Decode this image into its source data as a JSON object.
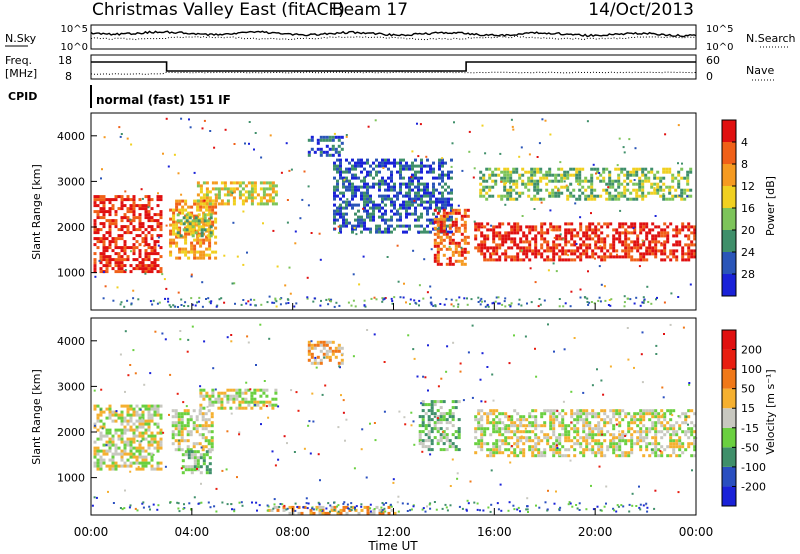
{
  "header": {
    "title": "Christmas Valley East (fitACF)",
    "beam": "Beam 17",
    "date": "14/Oct/2013"
  },
  "top_panels": {
    "nsky_label": "N.Sky",
    "nsearch_label": "N.Search",
    "nsky_ticks": [
      "10^5",
      "10^0"
    ],
    "nsky_right_ticks": [
      "10^5",
      "10^0"
    ],
    "freq_label_line1": "Freq.",
    "freq_label_line2": "[MHz]",
    "freq_ticks": [
      "18",
      "8"
    ],
    "nave_label": "Nave",
    "nave_ticks": [
      "60",
      "0"
    ],
    "cpid_label": "CPID",
    "cpid_text": "normal (fast) 151 IF"
  },
  "chart_data": [
    {
      "type": "heatmap",
      "name": "power",
      "ylabel": "Slant Range [km]",
      "ylim": [
        180,
        4500
      ],
      "yticks": [
        "1000",
        "2000",
        "3000",
        "4000"
      ],
      "colorbar_label": "Power [dB]",
      "colorbar_ticks": [
        "4",
        "8",
        "12",
        "16",
        "20",
        "24",
        "28"
      ],
      "colors": [
        "#1a22d8",
        "#2a55b8",
        "#3f8f6a",
        "#7dc45a",
        "#f0d020",
        "#f59a20",
        "#f06018",
        "#e01010"
      ],
      "bands": [
        {
          "x": [
            0.1,
            2.8
          ],
          "y": [
            1000,
            2700
          ],
          "level": 7
        },
        {
          "x": [
            3.1,
            4.9
          ],
          "y": [
            1300,
            2600
          ],
          "level": 5
        },
        {
          "x": [
            4.2,
            7.4
          ],
          "y": [
            2500,
            3000
          ],
          "level": 4
        },
        {
          "x": [
            3.4,
            4.8
          ],
          "y": [
            1800,
            2300
          ],
          "level": 3
        },
        {
          "x": [
            8.6,
            10.0
          ],
          "y": [
            3600,
            4000
          ],
          "level": 1
        },
        {
          "x": [
            9.6,
            14.3
          ],
          "y": [
            1900,
            3500
          ],
          "level": 1
        },
        {
          "x": [
            13.6,
            15.0
          ],
          "y": [
            1200,
            2400
          ],
          "level": 6
        },
        {
          "x": [
            15.2,
            24.0
          ],
          "y": [
            1300,
            2100
          ],
          "level": 7
        },
        {
          "x": [
            15.4,
            23.8
          ],
          "y": [
            2600,
            3300
          ],
          "level": 3
        }
      ]
    },
    {
      "type": "heatmap",
      "name": "velocity",
      "xlabel": "Time UT",
      "ylabel": "Slant Range [km]",
      "ylim": [
        180,
        4500
      ],
      "yticks": [
        "1000",
        "2000",
        "3000",
        "4000"
      ],
      "xticks": [
        "00:00",
        "04:00",
        "08:00",
        "12:00",
        "16:00",
        "20:00",
        "00:00"
      ],
      "colorbar_label": "Velocity [m s⁻¹]",
      "colorbar_ticks": [
        "200",
        "100",
        "50",
        "15",
        "-15",
        "-50",
        "-100",
        "-200"
      ],
      "colors": [
        "#1a22d8",
        "#2a4fc0",
        "#3f8f6a",
        "#6ad040",
        "#c8c8c0",
        "#f5b030",
        "#f07818",
        "#e81e10",
        "#e01010"
      ],
      "bands": [
        {
          "x": [
            0.1,
            2.8
          ],
          "y": [
            1200,
            2600
          ],
          "level": 4
        },
        {
          "x": [
            3.2,
            4.8
          ],
          "y": [
            1600,
            2500
          ],
          "level": 4
        },
        {
          "x": [
            4.3,
            7.3
          ],
          "y": [
            2500,
            2950
          ],
          "level": 4
        },
        {
          "x": [
            3.6,
            4.7
          ],
          "y": [
            1100,
            1600
          ],
          "level": 3
        },
        {
          "x": [
            13.0,
            14.6
          ],
          "y": [
            1600,
            2700
          ],
          "level": 3
        },
        {
          "x": [
            15.2,
            24.0
          ],
          "y": [
            1500,
            2500
          ],
          "level": 4
        },
        {
          "x": [
            8.6,
            10.0
          ],
          "y": [
            3500,
            4000
          ],
          "level": 5
        },
        {
          "x": [
            7.0,
            12.0
          ],
          "y": [
            200,
            380
          ],
          "level": 5
        }
      ]
    }
  ]
}
